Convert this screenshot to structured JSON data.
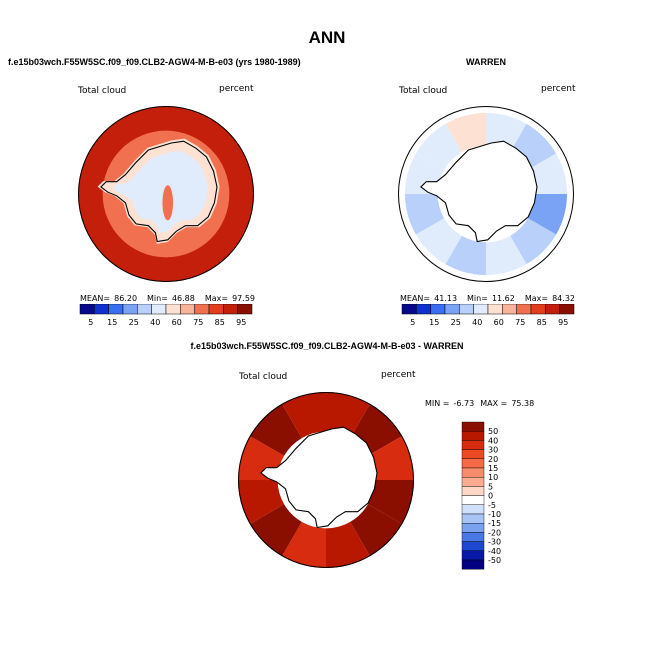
{
  "page": {
    "title": "ANN",
    "diff_title": "f.e15b03wch.F55W5SC.f09_f09.CLB2-AGW4-M-B-e03 - WARREN"
  },
  "chart_data": [
    {
      "type": "heatmap",
      "projection": "south-polar-stereographic",
      "title": "f.e15b03wch.F55W5SC.f09_f09.CLB2-AGW4-M-B-e03 (yrs 1980-1989)",
      "variable": "Total cloud",
      "units": "percent",
      "stats": {
        "mean": "86.20",
        "min": "46.88",
        "max": "97.59"
      },
      "stats_labels": {
        "mean": "MEAN=",
        "min": "Min=",
        "max": "Max="
      },
      "colorbar": {
        "ticks": [
          "5",
          "15",
          "25",
          "40",
          "60",
          "75",
          "85",
          "95"
        ],
        "colors": [
          "#08088c",
          "#1030d0",
          "#3a6ef0",
          "#7aa2f5",
          "#b8d0fa",
          "#e0ecfc",
          "#fde2d4",
          "#f8b49a",
          "#f07050",
          "#e23d1e",
          "#c41f0a",
          "#8a0f00"
        ]
      },
      "field": {
        "ocean_value": 93,
        "inner_ring_value": 82,
        "coast_value": 68,
        "interior_value": 55,
        "interior_min_value": 47,
        "mountain_value": 78
      }
    },
    {
      "type": "heatmap",
      "projection": "south-polar-stereographic",
      "title": "WARREN",
      "variable": "Total cloud",
      "units": "percent",
      "stats": {
        "mean": "41.13",
        "min": "11.62",
        "max": "84.32"
      },
      "stats_labels": {
        "mean": "MEAN=",
        "min": "Min=",
        "max": "Max="
      },
      "colorbar": {
        "ticks": [
          "5",
          "15",
          "25",
          "40",
          "60",
          "75",
          "85",
          "95"
        ],
        "colors": [
          "#08088c",
          "#1030d0",
          "#3a6ef0",
          "#7aa2f5",
          "#b8d0fa",
          "#e0ecfc",
          "#fde2d4",
          "#f8b49a",
          "#f07050",
          "#e23d1e",
          "#c41f0a",
          "#8a0f00"
        ]
      },
      "field": {
        "land_coverage": "none (white)",
        "sector_values": [
          55,
          30,
          45,
          20,
          35,
          45,
          30,
          42,
          25,
          50,
          40,
          62
        ]
      }
    },
    {
      "type": "heatmap",
      "projection": "south-polar-stereographic",
      "title": "f.e15b03wch.F55W5SC.f09_f09.CLB2-AGW4-M-B-e03 - WARREN",
      "variable": "Total cloud",
      "units": "percent",
      "stats": {
        "min": "-6.73",
        "max": "75.38"
      },
      "stats_labels": {
        "min": "MIN =",
        "max": "MAX ="
      },
      "colorbar": {
        "ticks": [
          "50",
          "40",
          "30",
          "20",
          "15",
          "10",
          "5",
          "0",
          "-5",
          "-10",
          "-15",
          "-20",
          "-30",
          "-40",
          "-50"
        ],
        "colors": [
          "#8a0f00",
          "#b81800",
          "#d82c10",
          "#ec4a24",
          "#f46a46",
          "#f78c6c",
          "#f9ac92",
          "#fdd8c6",
          "#ffffff",
          "#d0e0fa",
          "#a8c4f4",
          "#7aa2ee",
          "#4a78e6",
          "#1e48d0",
          "#0a18a8",
          "#000080"
        ]
      },
      "field": {
        "sector_values": [
          40,
          55,
          30,
          50,
          60,
          45,
          35,
          50,
          45,
          30,
          50,
          42
        ]
      }
    }
  ]
}
